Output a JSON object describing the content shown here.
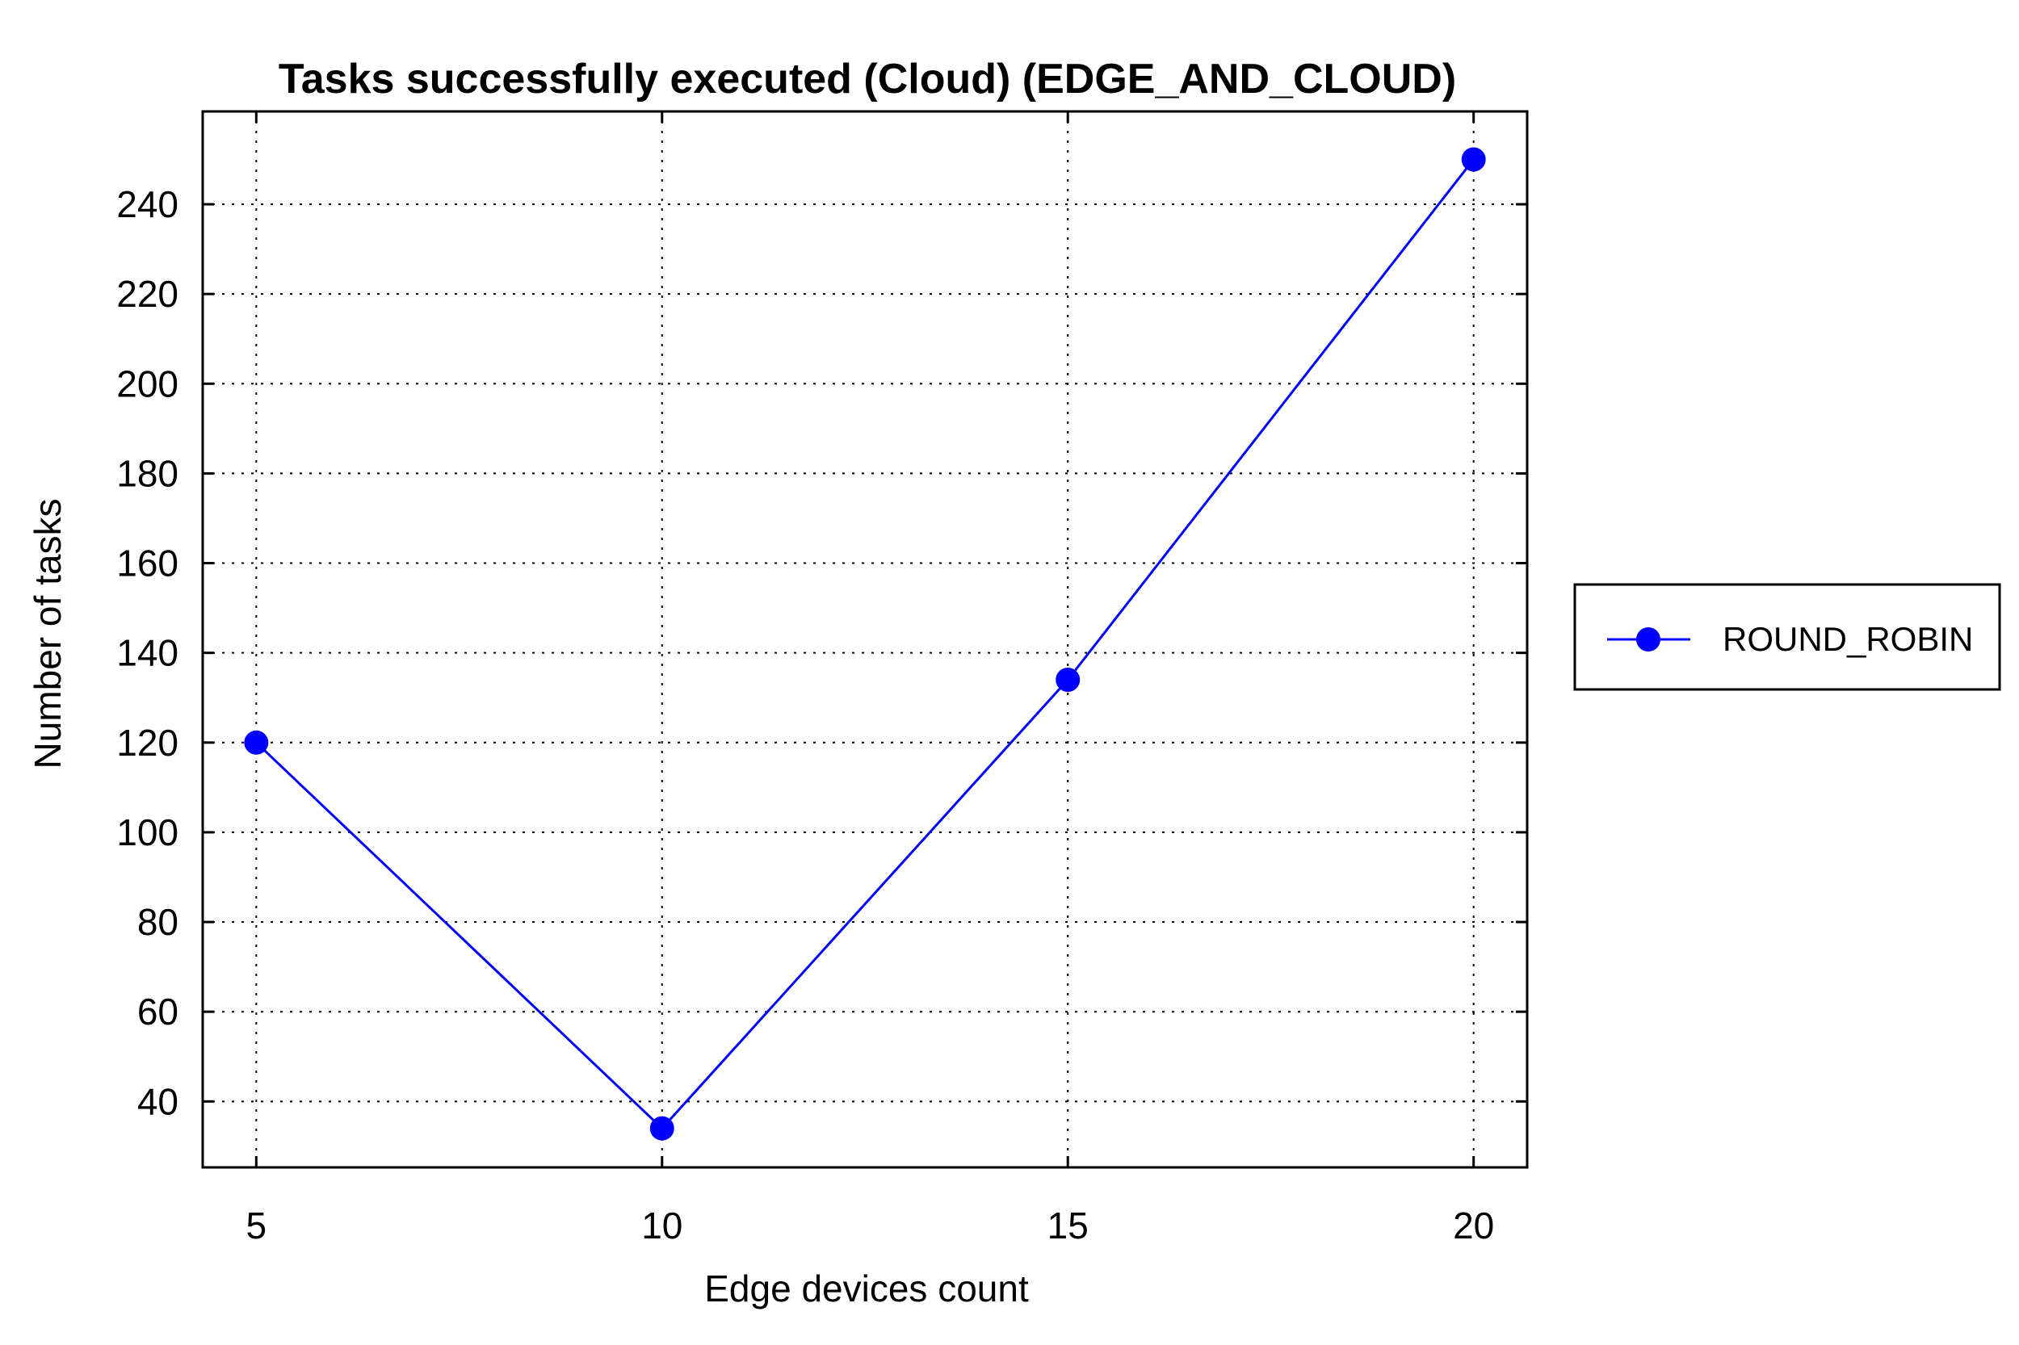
{
  "chart_data": {
    "type": "line",
    "title": "Tasks successfully executed (Cloud) (EDGE_AND_CLOUD)",
    "xlabel": "Edge devices count",
    "ylabel": "Number of tasks",
    "x": [
      5,
      10,
      15,
      20
    ],
    "xticks": [
      "5",
      "10",
      "15",
      "20"
    ],
    "yticks": [
      "40",
      "60",
      "80",
      "100",
      "120",
      "140",
      "160",
      "180",
      "200",
      "220",
      "240"
    ],
    "xlim": [
      4.34,
      20.66
    ],
    "ylim": [
      25.3,
      260.7
    ],
    "grid": true,
    "legend_position": "right",
    "series": [
      {
        "name": "ROUND_ROBIN",
        "values": [
          120,
          34,
          134,
          250
        ],
        "color": "#0000ff",
        "marker": "circle"
      }
    ]
  }
}
